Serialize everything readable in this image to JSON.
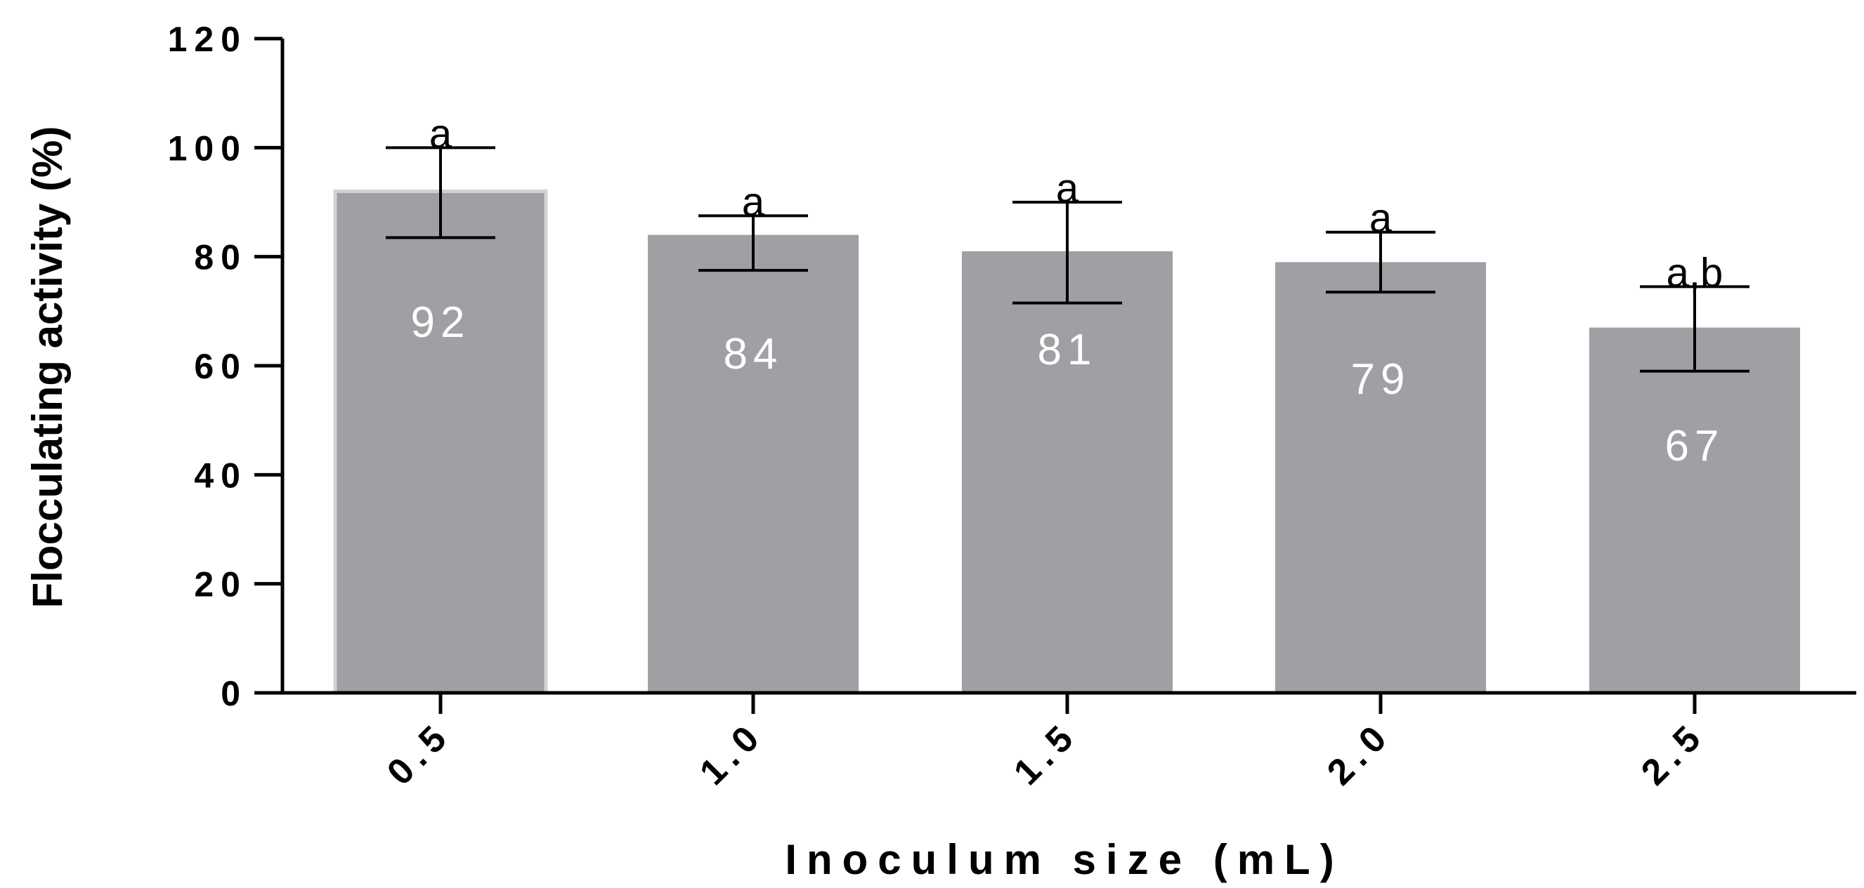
{
  "chart_data": {
    "type": "bar",
    "title": "",
    "xlabel": "Inoculum size (mL)",
    "ylabel": "Flocculating activity (%)",
    "ylim": [
      0,
      120
    ],
    "yticks": [
      "0",
      "20",
      "40",
      "60",
      "80",
      "100",
      "120"
    ],
    "categories": [
      "0.5",
      "1.0",
      "1.5",
      "2.0",
      "2.5"
    ],
    "values": [
      92,
      84,
      81,
      79,
      67
    ],
    "value_labels": [
      "92",
      "84",
      "81",
      "79",
      "67"
    ],
    "error_low": [
      83.5,
      77.5,
      71.5,
      73.5,
      59
    ],
    "error_high": [
      100,
      87.5,
      90,
      84.5,
      74.5
    ],
    "significance_labels": [
      "a",
      "a",
      "a",
      "a",
      "a,b"
    ],
    "bar_color": "#a09fa4",
    "grid": false
  }
}
